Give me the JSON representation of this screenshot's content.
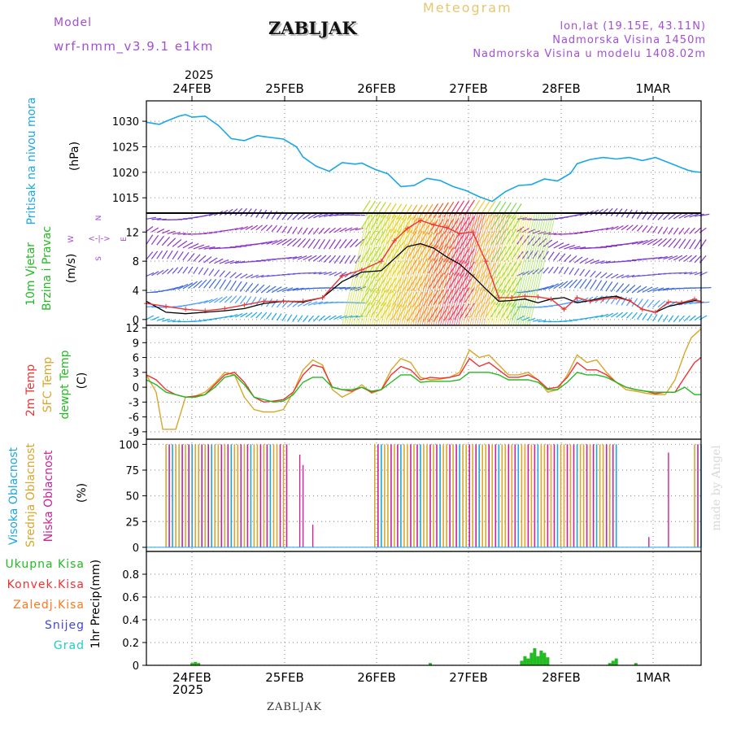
{
  "header": {
    "model_label": "Model",
    "model_name": "wrf-nmm_v3.9.1 e1km",
    "station": "ZABLJAK",
    "product": "Meteogram",
    "coords": "lon,lat (19.15E, 43.11N)",
    "elevation": "Nadmorska Visina 1450m",
    "model_elevation": "Nadmorska Visina u modelu 1408.02m",
    "watermark": "made by Angel",
    "footer_station": "ZABLJAK",
    "year_top": "2025",
    "year_bottom": "2025"
  },
  "colors": {
    "pressure": "#1aa7e6",
    "t2m": "#ee3333",
    "sfc": "#d9a62a",
    "dewpt": "#22bb22",
    "high_cloud": "#1aa7e6",
    "mid_cloud": "#d9a62a",
    "low_cloud": "#cc2299",
    "total_precip": "#22bb22",
    "conv_precip": "#ee3333",
    "frz_precip": "#ff7722",
    "snow": "#4444dd",
    "graupel": "#22cccc"
  },
  "chart_data": {
    "days": [
      "24FEB",
      "25FEB",
      "26FEB",
      "27FEB",
      "28FEB",
      "1MAR"
    ],
    "panels": [
      {
        "id": "pressure",
        "type": "line",
        "ylabel_side": "Pritisak na nivou mora",
        "ylabel": "(hPa)",
        "ticks": [
          "1015",
          "1020",
          "1025",
          "1030"
        ],
        "ylim": [
          1012,
          1034
        ],
        "series": [
          {
            "x": [
              0,
              4,
              6,
              10,
              12,
              14,
              18,
              22,
              26,
              30,
              34,
              36,
              42,
              46,
              48,
              52,
              56,
              60,
              64,
              66,
              70,
              74,
              78,
              82,
              86,
              90,
              94,
              98,
              102,
              106,
              110,
              114,
              118,
              122,
              126,
              130,
              132,
              136,
              140,
              144,
              148,
              152,
              156,
              160,
              162,
              164,
              166,
              168,
              170
            ],
            "values": [
              1029.8,
              1029.4,
              1030,
              1031,
              1031.3,
              1030.8,
              1031,
              1029.2,
              1026.6,
              1026.2,
              1027.2,
              1027,
              1026.5,
              1025,
              1023,
              1021.2,
              1020.2,
              1021.9,
              1021.6,
              1021.8,
              1020.6,
              1019.7,
              1017.2,
              1017.4,
              1018.8,
              1018.4,
              1017.2,
              1016.4,
              1015.2,
              1014.3,
              1016.2,
              1017.4,
              1017.6,
              1018.7,
              1018.3,
              1019.8,
              1021.7,
              1022.5,
              1022.9,
              1022.6,
              1022.9,
              1022.3,
              1022.9,
              1021.9,
              1021.4,
              1020.9,
              1020.4,
              1020.1,
              1020
            ]
          }
        ]
      },
      {
        "id": "wind",
        "type": "line",
        "ylabel_side": "10m Vjetar",
        "ylabel_side2": "Brzina i Pravac",
        "ylabel": "(m/s)",
        "compass": [
          "N",
          "W",
          "E",
          "S"
        ],
        "ticks": [
          "0",
          "4",
          "8",
          "12"
        ],
        "ylim": [
          -0.8,
          14.6
        ],
        "series": [
          {
            "name": "speed",
            "x": [
              0,
              6,
              12,
              18,
              24,
              30,
              36,
              42,
              48,
              54,
              60,
              66,
              72,
              80,
              84,
              88,
              92,
              96,
              100,
              104,
              108,
              112,
              116,
              120,
              124,
              128,
              132,
              136,
              140,
              144,
              148,
              152,
              156,
              160,
              164,
              168,
              170
            ],
            "values": [
              2.5,
              1,
              0.8,
              1,
              1.2,
              1.5,
              2.2,
              2.5,
              2.4,
              3,
              5.2,
              6.5,
              6.7,
              10,
              10.4,
              9.8,
              8.6,
              7.6,
              6,
              4.2,
              2.5,
              2.6,
              2.8,
              2.3,
              2.8,
              3,
              2.3,
              2.6,
              3,
              3.2,
              2.6,
              1.4,
              1,
              1.8,
              2.2,
              2.6,
              2.5
            ]
          },
          {
            "name": "gust",
            "x": [
              0,
              6,
              12,
              18,
              24,
              30,
              36,
              42,
              48,
              54,
              60,
              66,
              72,
              76,
              80,
              84,
              88,
              92,
              96,
              100,
              104,
              108,
              112,
              116,
              120,
              124,
              128,
              132,
              136,
              140,
              144,
              148,
              152,
              156,
              160,
              164,
              168,
              170
            ],
            "values": [
              2.2,
              1.8,
              1.4,
              1.2,
              1.5,
              2,
              2.5,
              2.5,
              2.5,
              3,
              6,
              6.8,
              8,
              10.8,
              12.5,
              13.6,
              13,
              12.6,
              11.8,
              12,
              8,
              3,
              3,
              3.2,
              3.1,
              2.8,
              1.4,
              3,
              2.5,
              2.8,
              3,
              2.6,
              1.4,
              1,
              2.4,
              2.3,
              2.8,
              2.4
            ]
          }
        ]
      },
      {
        "id": "temperature",
        "type": "line",
        "ylabel_side": "2m Temp",
        "ylabel_side2": "SFC Temp",
        "ylabel_side3": "dewpt Temp",
        "ylabel": "(C)",
        "ticks": [
          "-9",
          "-6",
          "-3",
          "0",
          "3",
          "6",
          "9",
          "12"
        ],
        "ylim": [
          -10.5,
          12.5
        ],
        "series": [
          {
            "name": "2m Temp",
            "x": [
              0,
              3,
              6,
              9,
              12,
              15,
              18,
              21,
              24,
              27,
              30,
              33,
              36,
              39,
              42,
              45,
              48,
              51,
              54,
              57,
              60,
              63,
              66,
              69,
              72,
              75,
              78,
              81,
              84,
              87,
              90,
              93,
              96,
              99,
              102,
              105,
              108,
              111,
              114,
              117,
              120,
              123,
              126,
              129,
              132,
              135,
              138,
              141,
              144,
              147,
              150,
              153,
              156,
              159,
              162,
              165,
              168,
              170
            ],
            "values": [
              2.5,
              1.5,
              -0.5,
              -1.5,
              -2,
              -1.8,
              -1.5,
              0.5,
              2.5,
              3,
              1,
              -2,
              -3,
              -2.8,
              -2.5,
              -1,
              2.5,
              4.5,
              4,
              0,
              -0.5,
              -0.8,
              0,
              -1,
              -0.5,
              2.5,
              4.2,
              3.5,
              1.5,
              2,
              1.8,
              2,
              2.5,
              5.8,
              4.2,
              5,
              3.5,
              2,
              2,
              2.5,
              1.5,
              -0.3,
              0,
              2,
              5,
              3.5,
              3.5,
              2.5,
              1,
              0,
              -0.5,
              -0.8,
              -1.3,
              -1,
              -1,
              2,
              5,
              6
            ]
          },
          {
            "name": "SFC Temp",
            "x": [
              0,
              3,
              5,
              6,
              9,
              12,
              15,
              18,
              21,
              24,
              27,
              30,
              33,
              36,
              39,
              42,
              45,
              48,
              51,
              54,
              57,
              60,
              63,
              66,
              69,
              72,
              75,
              78,
              81,
              84,
              87,
              90,
              93,
              96,
              99,
              102,
              105,
              108,
              111,
              114,
              117,
              120,
              123,
              126,
              129,
              132,
              135,
              138,
              141,
              144,
              147,
              150,
              153,
              156,
              159,
              162,
              165,
              167,
              170
            ],
            "values": [
              2.5,
              -1,
              -8.5,
              -8.5,
              -8.5,
              -2,
              -1.8,
              -1,
              0.8,
              3,
              2.5,
              -2,
              -4.5,
              -5,
              -5,
              -4.5,
              -1,
              3.5,
              5.5,
              4.5,
              -0.5,
              -2,
              -1,
              0.5,
              -1.2,
              -0.5,
              3.5,
              5.8,
              5,
              2,
              1.5,
              1.6,
              2,
              3,
              7.5,
              6,
              6.5,
              4.5,
              2.5,
              2.5,
              3,
              1.5,
              -1,
              -0.5,
              2.5,
              6.5,
              5,
              5.5,
              3,
              1,
              -0.5,
              -0.8,
              -1.2,
              -1.5,
              -1.5,
              1.5,
              7,
              10,
              11.8
            ]
          },
          {
            "name": "dewpt Temp",
            "x": [
              0,
              3,
              6,
              9,
              12,
              15,
              18,
              21,
              24,
              27,
              30,
              33,
              36,
              39,
              42,
              45,
              48,
              51,
              54,
              57,
              60,
              63,
              66,
              69,
              72,
              75,
              78,
              81,
              84,
              87,
              90,
              93,
              96,
              99,
              102,
              105,
              108,
              111,
              114,
              117,
              120,
              123,
              126,
              129,
              132,
              135,
              138,
              141,
              144,
              147,
              150,
              153,
              156,
              159,
              162,
              165,
              168,
              170
            ],
            "values": [
              1.5,
              0.5,
              -1,
              -1.5,
              -2,
              -2,
              -1.5,
              0,
              2,
              2.5,
              0.5,
              -2,
              -2.5,
              -3,
              -2.8,
              -1.5,
              1,
              2,
              2,
              0,
              -0.5,
              -0.5,
              0,
              -0.8,
              -0.5,
              1,
              2.5,
              2.5,
              1,
              1.2,
              1.2,
              1.2,
              1.5,
              3,
              3,
              3,
              2.5,
              1.5,
              1.5,
              1.5,
              1,
              -0.5,
              -0.5,
              1,
              3,
              2.5,
              2.5,
              2,
              1,
              0,
              -0.5,
              -0.8,
              -1,
              -1,
              -1,
              0,
              -1.5,
              -1.5
            ]
          }
        ]
      },
      {
        "id": "cloud",
        "type": "bar",
        "ylabel_side": "Visoka Oblacnost",
        "ylabel_side2": "Srednja Oblacnost",
        "ylabel_side3": "Niska Oblacnost",
        "ylabel": "(%)",
        "ticks": [
          "0",
          "25",
          "50",
          "75",
          "100"
        ],
        "ylim": [
          -4,
          105
        ],
        "cloudy_segments": [
          [
            6,
            43
          ],
          [
            70,
            144
          ],
          [
            168,
            170
          ]
        ],
        "extra_bars": [
          {
            "x": 47,
            "value": 90
          },
          {
            "x": 48,
            "value": 80
          },
          {
            "x": 51,
            "value": 22
          },
          {
            "x": 160,
            "value": 92
          },
          {
            "x": 154,
            "value": 10
          }
        ]
      },
      {
        "id": "precip",
        "type": "bar",
        "ylabel_side": "1hr Precip",
        "ylabel": "(mm)",
        "legend": [
          "Ukupna Kisa",
          "Konvek.Kisa",
          "Zaledj.Kisa",
          "Snijeg",
          "Grad"
        ],
        "ticks": [
          "0",
          "0.2",
          "0.4",
          "0.6",
          "0.8"
        ],
        "ylim": [
          0,
          1
        ],
        "bars": [
          {
            "x": 14,
            "value": 0.02
          },
          {
            "x": 15,
            "value": 0.03
          },
          {
            "x": 16,
            "value": 0.02
          },
          {
            "x": 87,
            "value": 0.02
          },
          {
            "x": 115,
            "value": 0.04
          },
          {
            "x": 116,
            "value": 0.08
          },
          {
            "x": 117,
            "value": 0.06
          },
          {
            "x": 118,
            "value": 0.11
          },
          {
            "x": 119,
            "value": 0.15
          },
          {
            "x": 120,
            "value": 0.08
          },
          {
            "x": 121,
            "value": 0.13
          },
          {
            "x": 122,
            "value": 0.11
          },
          {
            "x": 123,
            "value": 0.07
          },
          {
            "x": 142,
            "value": 0.02
          },
          {
            "x": 143,
            "value": 0.04
          },
          {
            "x": 144,
            "value": 0.06
          },
          {
            "x": 150,
            "value": 0.02
          }
        ]
      }
    ]
  }
}
